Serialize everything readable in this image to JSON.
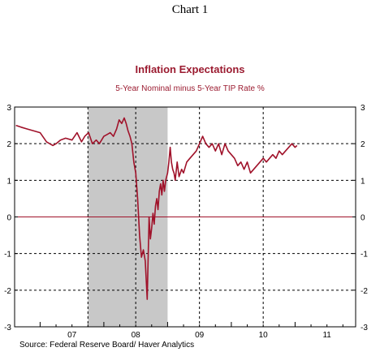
{
  "header": {
    "chart_number": "Chart 1"
  },
  "footer": {
    "source": "Source:  Federal Reserve Board/ Haver Analytics"
  },
  "chart_data": {
    "type": "line",
    "title": "Inflation Expectations",
    "subtitle": "5-Year Nominal minus 5-Year TIP Rate    %",
    "xlabel": "",
    "ylabel": "",
    "xlim": [
      2006.6,
      2011.95
    ],
    "ylim": [
      -3,
      3
    ],
    "y_ticks": [
      -3,
      -2,
      -1,
      0,
      1,
      2,
      3
    ],
    "x_tick_labels": [
      {
        "label": "07",
        "x": 2007.0
      },
      {
        "label": "08",
        "x": 2008.0
      },
      {
        "label": "09",
        "x": 2009.0
      },
      {
        "label": "10",
        "x": 2010.0
      },
      {
        "label": "11",
        "x": 2011.0
      }
    ],
    "x_quarter_ticks": [
      2007,
      2007.25,
      2007.5,
      2007.75,
      2008,
      2008.25,
      2008.5,
      2008.75,
      2009,
      2009.25,
      2009.5,
      2009.75,
      2010,
      2010.25,
      2010.5,
      2010.75,
      2011,
      2011.25,
      2011.5,
      2011.75
    ],
    "vertical_gridlines": [
      2007.75,
      2008.5,
      2009.5,
      2010.5
    ],
    "horizontal_gridlines": [
      -2,
      -1,
      1,
      2
    ],
    "zero_line": 0,
    "grid": true,
    "recession_shading": {
      "start": 2007.75,
      "end": 2009.0,
      "color": "#c8c8c8"
    },
    "line_color": "#a0122a",
    "zero_line_color": "#a0122a",
    "series": [
      {
        "x": [
          2006.62,
          2006.7,
          2006.8,
          2006.9,
          2007.0,
          2007.1,
          2007.2,
          2007.25,
          2007.32,
          2007.4,
          2007.5,
          2007.58,
          2007.65,
          2007.7,
          2007.76,
          2007.82,
          2007.88,
          2007.93,
          2008.0,
          2008.05,
          2008.1,
          2008.15,
          2008.2,
          2008.24,
          2008.28,
          2008.32,
          2008.35,
          2008.38,
          2008.41,
          2008.44,
          2008.47,
          2008.5,
          2008.53,
          2008.56,
          2008.59,
          2008.62,
          2008.65,
          2008.68,
          2008.71,
          2008.73,
          2008.75,
          2008.77,
          2008.79,
          2008.81,
          2008.83,
          2008.85,
          2008.87,
          2008.89,
          2008.91,
          2008.93,
          2008.95,
          2008.97,
          2009.0,
          2009.02,
          2009.04,
          2009.06,
          2009.08,
          2009.1,
          2009.12,
          2009.15,
          2009.18,
          2009.22,
          2009.25,
          2009.3,
          2009.35,
          2009.4,
          2009.45,
          2009.5,
          2009.55,
          2009.6,
          2009.65,
          2009.7,
          2009.75,
          2009.8,
          2009.85,
          2009.9,
          2009.95,
          2010.0,
          2010.05,
          2010.1,
          2010.15,
          2010.2,
          2010.25,
          2010.3,
          2010.35,
          2010.4,
          2010.45,
          2010.5,
          2010.55,
          2010.6,
          2010.65,
          2010.7,
          2010.75,
          2010.8,
          2010.85,
          2010.9,
          2010.95,
          2011.0,
          2011.03
        ],
        "values": [
          2.5,
          2.45,
          2.4,
          2.35,
          2.3,
          2.05,
          1.95,
          2.0,
          2.1,
          2.15,
          2.1,
          2.3,
          2.05,
          2.2,
          2.3,
          2.0,
          2.1,
          2.0,
          2.2,
          2.25,
          2.3,
          2.2,
          2.4,
          2.65,
          2.55,
          2.7,
          2.55,
          2.35,
          2.2,
          2.0,
          1.5,
          1.2,
          0.5,
          -0.5,
          -1.1,
          -0.9,
          -1.2,
          -2.25,
          0.0,
          -0.6,
          -0.3,
          0.1,
          -0.2,
          0.3,
          0.5,
          0.2,
          0.7,
          0.9,
          0.6,
          1.0,
          0.7,
          1.0,
          1.2,
          1.5,
          1.9,
          1.5,
          1.3,
          1.2,
          1.0,
          1.5,
          1.1,
          1.3,
          1.2,
          1.5,
          1.6,
          1.7,
          1.8,
          2.0,
          2.2,
          2.0,
          1.9,
          2.0,
          1.8,
          2.0,
          1.7,
          2.0,
          1.8,
          1.7,
          1.6,
          1.4,
          1.5,
          1.3,
          1.5,
          1.2,
          1.3,
          1.4,
          1.5,
          1.6,
          1.5,
          1.6,
          1.7,
          1.6,
          1.8,
          1.7,
          1.8,
          1.9,
          2.0,
          1.9,
          1.95
        ]
      }
    ]
  }
}
